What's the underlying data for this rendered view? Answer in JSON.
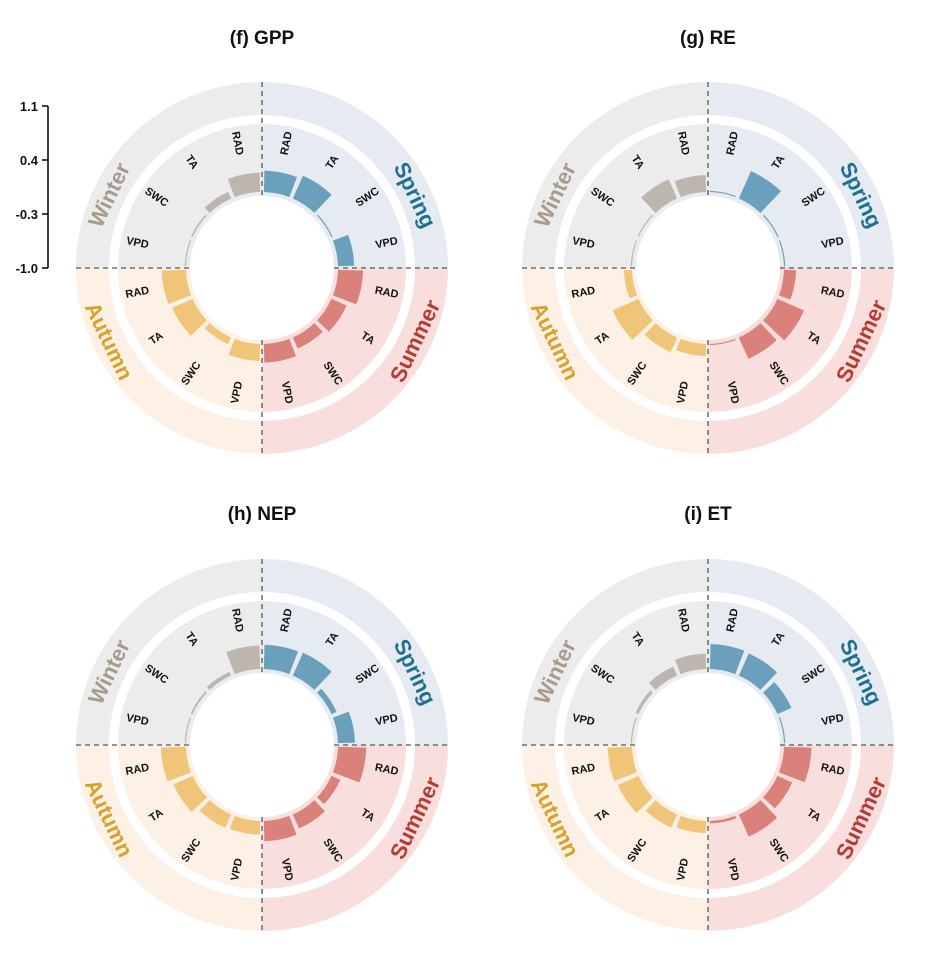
{
  "chart_data": {
    "type": "radial-bar",
    "scale": {
      "ticks": [
        "1.1",
        "0.4",
        "-0.3",
        "-1.0"
      ],
      "range": [
        -1.0,
        1.1
      ]
    },
    "seasons": [
      {
        "name": "Spring",
        "color": "#1f6f93",
        "wedge_color": "#e6ebf1",
        "bar_color": "#6aa0bc"
      },
      {
        "name": "Summer",
        "color": "#b83a32",
        "wedge_color": "#f9dede",
        "bar_color": "#d9817a"
      },
      {
        "name": "Autumn",
        "color": "#d9a12a",
        "wedge_color": "#fcf1e4",
        "bar_color": "#f0c57a"
      },
      {
        "name": "Winter",
        "color": "#a89b8d",
        "wedge_color": "#ececec",
        "bar_color": "#bdb6ae"
      }
    ],
    "variables": {
      "Spring": [
        "RAD",
        "TA",
        "SWC",
        "VPD"
      ],
      "Summer": [
        "RAD",
        "TA",
        "SWC",
        "VPD"
      ],
      "Autumn": [
        "RAD",
        "TA",
        "SWC",
        "VPD"
      ],
      "Winter": [
        "RAD",
        "TA",
        "SWC",
        "VPD"
      ]
    },
    "panels": [
      {
        "title": "(f) GPP",
        "values": {
          "Spring": [
            0.32,
            0.55,
            -0.98,
            0.0
          ],
          "Summer": [
            0.55,
            0.02,
            -0.25,
            0.15
          ],
          "Autumn": [
            0.5,
            0.38,
            -0.55,
            0.05
          ],
          "Winter": [
            0.2,
            -0.55,
            -0.9,
            -0.96
          ]
        }
      },
      {
        "title": "(g) RE",
        "values": {
          "Spring": [
            -0.95,
            0.85,
            -0.93,
            -0.95
          ],
          "Summer": [
            -0.25,
            0.8,
            0.45,
            -0.95
          ],
          "Autumn": [
            -0.5,
            0.75,
            0.0,
            -0.25
          ],
          "Winter": [
            0.05,
            0.3,
            -0.95,
            -0.97
          ]
        }
      },
      {
        "title": "(h) NEP",
        "values": {
          "Spring": [
            0.5,
            0.55,
            -0.65,
            0.05
          ],
          "Summer": [
            0.75,
            -0.4,
            -0.05,
            0.25
          ],
          "Autumn": [
            0.55,
            0.3,
            -0.1,
            -0.15
          ],
          "Winter": [
            0.45,
            -0.75,
            -0.88,
            -0.96
          ]
        }
      },
      {
        "title": "(i) ET",
        "values": {
          "Spring": [
            0.55,
            0.5,
            -0.05,
            -0.95
          ],
          "Summer": [
            0.7,
            0.0,
            0.5,
            -0.85
          ],
          "Autumn": [
            0.5,
            0.4,
            -0.1,
            -0.25
          ],
          "Winter": [
            -0.05,
            -0.4,
            -0.8,
            -0.92
          ]
        }
      }
    ]
  }
}
